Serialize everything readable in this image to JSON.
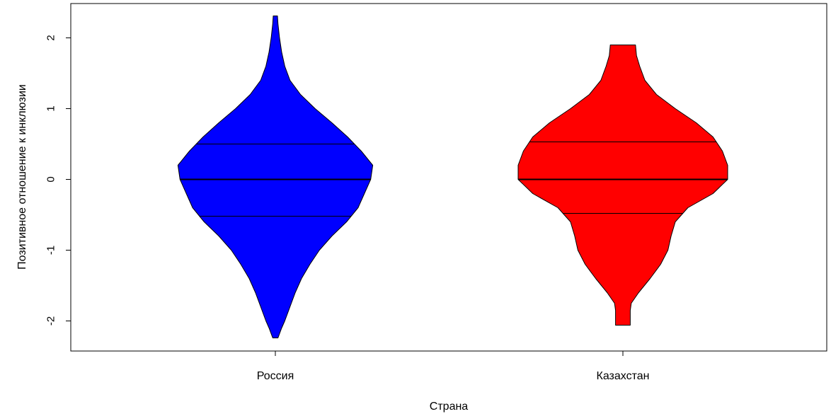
{
  "chart_data": {
    "type": "violin",
    "title": "",
    "xlabel": "Страна",
    "ylabel": "Позитивное отношение к инклюзии",
    "ylim": [
      -2.43,
      2.43
    ],
    "yticks": [
      2,
      1,
      0,
      -1,
      -2
    ],
    "ytick_labels": [
      "2",
      "1",
      "0",
      "-1",
      "-2"
    ],
    "categories": [
      "Россия",
      "Казахстан"
    ],
    "series": [
      {
        "category": "Россия",
        "color": "#0000ff",
        "min": -2.24,
        "max": 2.31,
        "quartiles": [
          -0.52,
          0.0,
          0.5
        ],
        "density": [
          [
            2.31,
            0.02
          ],
          [
            2.2,
            0.025
          ],
          [
            2.0,
            0.04
          ],
          [
            1.8,
            0.06
          ],
          [
            1.6,
            0.09
          ],
          [
            1.4,
            0.14
          ],
          [
            1.2,
            0.24
          ],
          [
            1.0,
            0.38
          ],
          [
            0.8,
            0.54
          ],
          [
            0.6,
            0.69
          ],
          [
            0.4,
            0.82
          ],
          [
            0.2,
            0.93
          ],
          [
            0.0,
            0.91
          ],
          [
            -0.2,
            0.85
          ],
          [
            -0.4,
            0.79
          ],
          [
            -0.6,
            0.68
          ],
          [
            -0.8,
            0.54
          ],
          [
            -1.0,
            0.42
          ],
          [
            -1.2,
            0.33
          ],
          [
            -1.4,
            0.25
          ],
          [
            -1.6,
            0.19
          ],
          [
            -1.8,
            0.14
          ],
          [
            -2.0,
            0.09
          ],
          [
            -2.1,
            0.06
          ],
          [
            -2.24,
            0.025
          ]
        ]
      },
      {
        "category": "Казахстан",
        "color": "#ff0000",
        "min": -2.06,
        "max": 1.9,
        "quartiles": [
          -0.48,
          0.0,
          0.53
        ],
        "density": [
          [
            1.9,
            0.12
          ],
          [
            1.75,
            0.13
          ],
          [
            1.6,
            0.16
          ],
          [
            1.4,
            0.21
          ],
          [
            1.2,
            0.32
          ],
          [
            1.0,
            0.5
          ],
          [
            0.8,
            0.7
          ],
          [
            0.6,
            0.86
          ],
          [
            0.4,
            0.95
          ],
          [
            0.2,
            1.0
          ],
          [
            0.0,
            1.0
          ],
          [
            -0.2,
            0.86
          ],
          [
            -0.4,
            0.62
          ],
          [
            -0.6,
            0.5
          ],
          [
            -0.8,
            0.46
          ],
          [
            -1.0,
            0.43
          ],
          [
            -1.2,
            0.36
          ],
          [
            -1.4,
            0.26
          ],
          [
            -1.6,
            0.15
          ],
          [
            -1.75,
            0.08
          ],
          [
            -1.85,
            0.07
          ],
          [
            -2.0,
            0.07
          ],
          [
            -2.06,
            0.07
          ]
        ]
      }
    ]
  }
}
